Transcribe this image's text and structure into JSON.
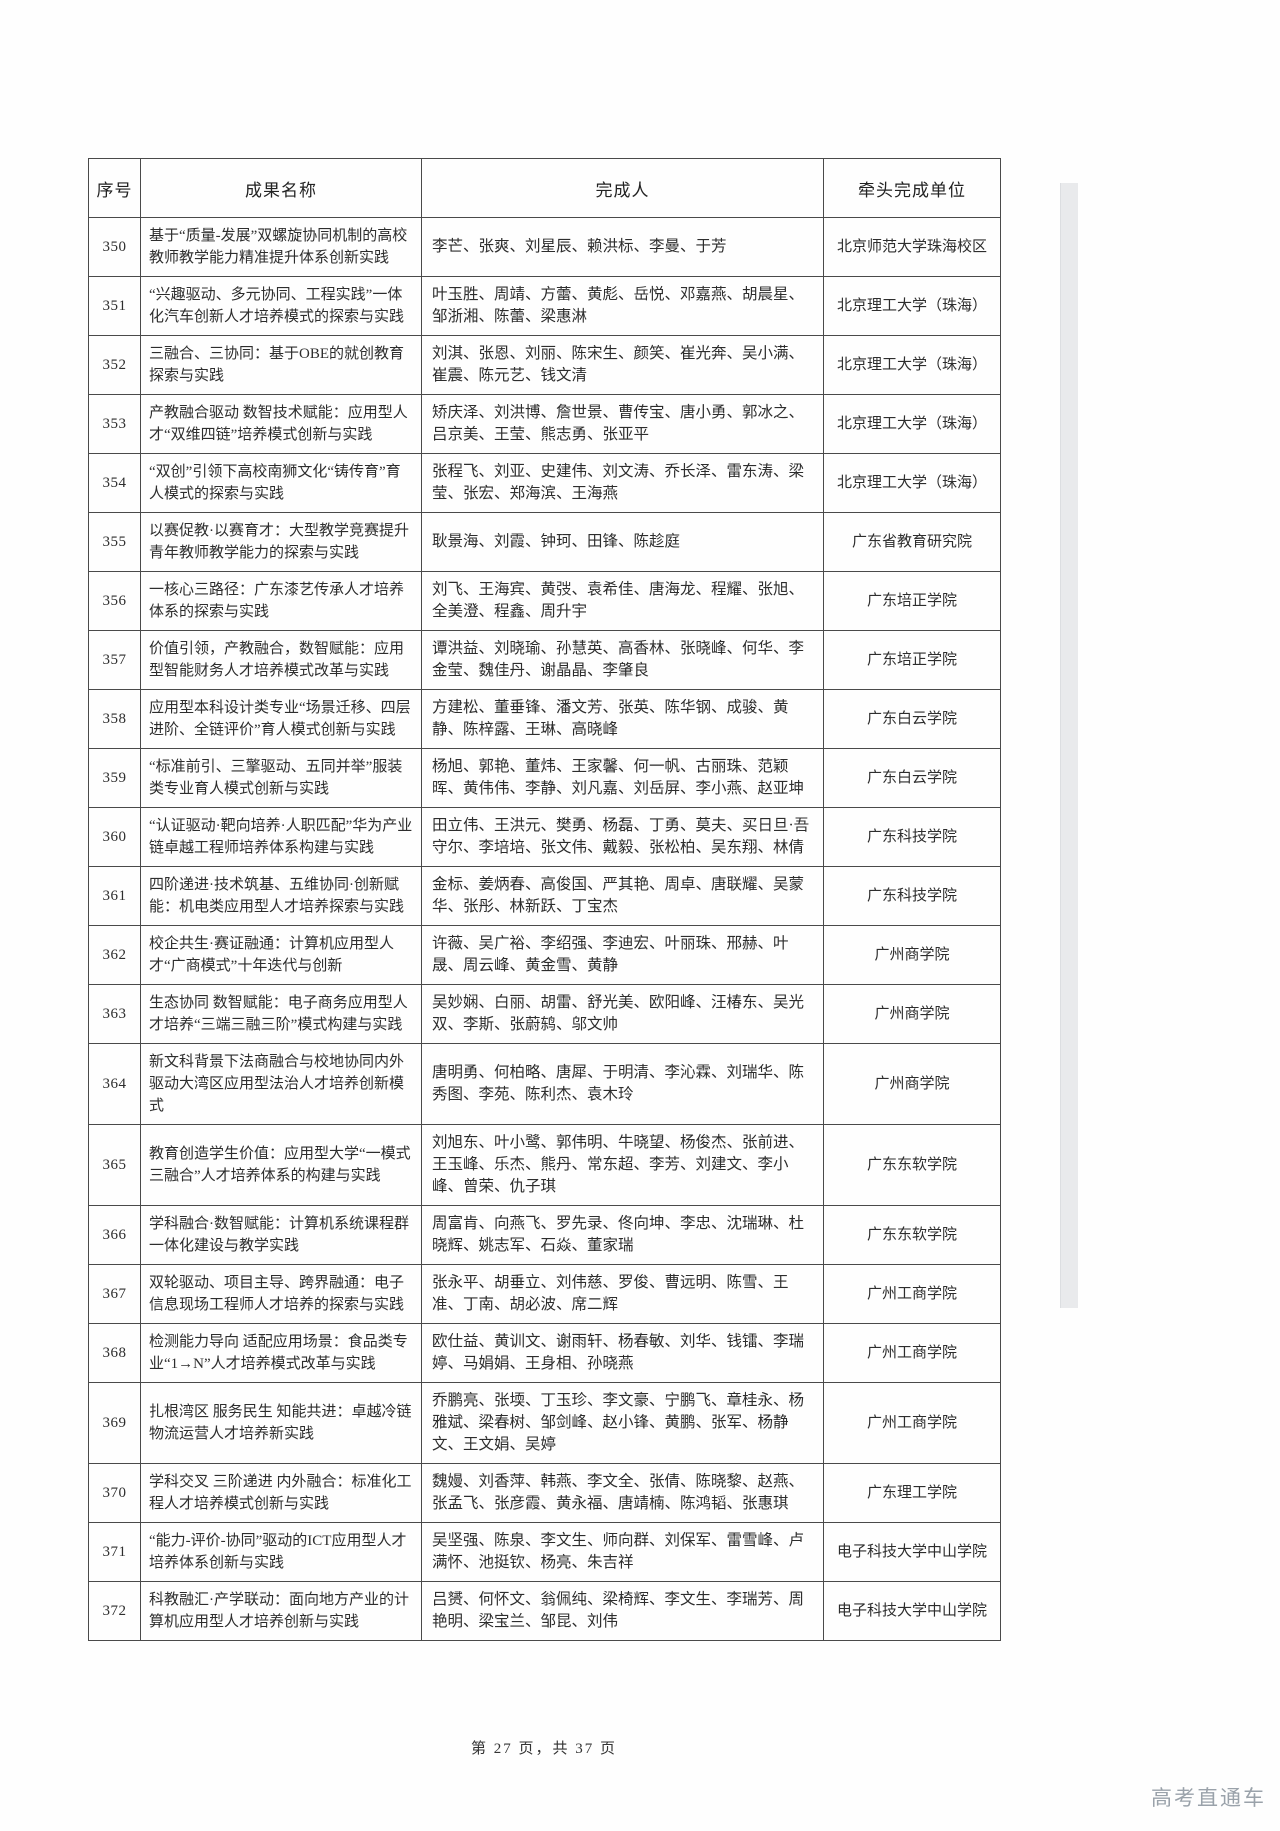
{
  "page": {
    "footer": "第 27 页，共 37 页",
    "watermark": "高考直通车"
  },
  "table": {
    "headers": [
      "序号",
      "成果名称",
      "完成人",
      "牵头完成单位"
    ],
    "rows": [
      {
        "no": "350",
        "title": "基于“质量-发展”双螺旋协同机制的高校教师教学能力精准提升体系创新实践",
        "people": "李芒、张爽、刘星辰、赖洪标、李曼、于芳",
        "unit": "北京师范大学珠海校区"
      },
      {
        "no": "351",
        "title": "“兴趣驱动、多元协同、工程实践”一体化汽车创新人才培养模式的探索与实践",
        "people": "叶玉胜、周靖、方蕾、黄彪、岳悦、邓嘉燕、胡晨星、邹浙湘、陈蕾、梁惠淋",
        "unit": "北京理工大学（珠海）"
      },
      {
        "no": "352",
        "title": "三融合、三协同：基于OBE的就创教育探索与实践",
        "people": "刘淇、张恩、刘丽、陈宋生、颜笑、崔光奔、吴小满、崔震、陈元艺、钱文清",
        "unit": "北京理工大学（珠海）"
      },
      {
        "no": "353",
        "title": "产教融合驱动 数智技术赋能：应用型人才“双维四链”培养模式创新与实践",
        "people": "矫庆泽、刘洪博、詹世景、曹传宝、唐小勇、郭冰之、吕京美、王莹、熊志勇、张亚平",
        "unit": "北京理工大学（珠海）"
      },
      {
        "no": "354",
        "title": "“双创”引领下高校南狮文化“铸传育”育人模式的探索与实践",
        "people": "张程飞、刘亚、史建伟、刘文涛、乔长泽、雷东涛、梁莹、张宏、郑海滨、王海燕",
        "unit": "北京理工大学（珠海）"
      },
      {
        "no": "355",
        "title": "以赛促教·以赛育才：大型教学竞赛提升青年教师教学能力的探索与实践",
        "people": "耿景海、刘霞、钟珂、田锋、陈趁庭",
        "unit": "广东省教育研究院"
      },
      {
        "no": "356",
        "title": "一核心三路径：广东漆艺传承人才培养体系的探索与实践",
        "people": "刘飞、王海宾、黄弢、袁希佳、唐海龙、程耀、张旭、全美澄、程鑫、周升宇",
        "unit": "广东培正学院"
      },
      {
        "no": "357",
        "title": "价值引领，产教融合，数智赋能：应用型智能财务人才培养模式改革与实践",
        "people": "谭洪益、刘晓瑜、孙慧英、高香林、张晓峰、何华、李金莹、魏佳丹、谢晶晶、李肇良",
        "unit": "广东培正学院"
      },
      {
        "no": "358",
        "title": "应用型本科设计类专业“场景迁移、四层进阶、全链评价”育人模式创新与实践",
        "people": "方建松、董垂锋、潘文芳、张英、陈华钢、成骏、黄静、陈梓露、王琳、高晓峰",
        "unit": "广东白云学院"
      },
      {
        "no": "359",
        "title": "“标准前引、三擎驱动、五同并举”服装类专业育人模式创新与实践",
        "people": "杨旭、郭艳、董炜、王家馨、何一帆、古丽珠、范颖晖、黄伟伟、李静、刘凡嘉、刘岳屏、李小燕、赵亚坤",
        "unit": "广东白云学院"
      },
      {
        "no": "360",
        "title": "“认证驱动·靶向培养·人职匹配”华为产业链卓越工程师培养体系构建与实践",
        "people": "田立伟、王洪元、樊勇、杨磊、丁勇、莫夫、买日旦·吾守尔、李培培、张文伟、戴毅、张松柏、吴东翔、林倩",
        "unit": "广东科技学院"
      },
      {
        "no": "361",
        "title": "四阶递进·技术筑基、五维协同·创新赋能：机电类应用型人才培养探索与实践",
        "people": "金标、姜炳春、高俊国、严其艳、周卓、唐联耀、吴蒙华、张彤、林新跃、丁宝杰",
        "unit": "广东科技学院"
      },
      {
        "no": "362",
        "title": "校企共生·赛证融通：计算机应用型人才“广商模式”十年迭代与创新",
        "people": "许薇、吴广裕、李绍强、李迪宏、叶丽珠、邢赫、叶晟、周云峰、黄金雪、黄静",
        "unit": "广州商学院"
      },
      {
        "no": "363",
        "title": "生态协同 数智赋能：电子商务应用型人才培养“三端三融三阶”模式构建与实践",
        "people": "吴妙娴、白丽、胡雷、舒光美、欧阳峰、汪椿东、吴光双、李斯、张蔚鸫、邬文帅",
        "unit": "广州商学院"
      },
      {
        "no": "364",
        "title": "新文科背景下法商融合与校地协同内外驱动大湾区应用型法治人才培养创新模式",
        "people": "唐明勇、何柏略、唐犀、于明清、李沁霖、刘瑞华、陈秀图、李苑、陈利杰、袁木玲",
        "unit": "广州商学院"
      },
      {
        "no": "365",
        "title": "教育创造学生价值：应用型大学“一模式三融合”人才培养体系的构建与实践",
        "people": "刘旭东、叶小鹭、郭伟明、牛晓望、杨俊杰、张前进、王玉峰、乐杰、熊丹、常东超、李芳、刘建文、李小峰、曾荣、仇子琪",
        "unit": "广东东软学院"
      },
      {
        "no": "366",
        "title": "学科融合·数智赋能：计算机系统课程群一体化建设与教学实践",
        "people": "周富肯、向燕飞、罗先录、佟向坤、李忠、沈瑞琳、杜晓辉、姚志军、石焱、董家瑞",
        "unit": "广东东软学院"
      },
      {
        "no": "367",
        "title": "双轮驱动、项目主导、跨界融通：电子信息现场工程师人才培养的探索与实践",
        "people": "张永平、胡垂立、刘伟慈、罗俊、曹远明、陈雪、王准、丁南、胡必波、席二辉",
        "unit": "广州工商学院"
      },
      {
        "no": "368",
        "title": "检测能力导向 适配应用场景：食品类专业“1→N”人才培养模式改革与实践",
        "people": "欧仕益、黄训文、谢雨轩、杨春敏、刘华、钱镭、李瑞婷、马娟娟、王身相、孙晓燕",
        "unit": "广州工商学院"
      },
      {
        "no": "369",
        "title": "扎根湾区 服务民生 知能共进：卓越冷链物流运营人才培养新实践",
        "people": "乔鹏亮、张堧、丁玉珍、李文豪、宁鹏飞、章桂永、杨雅斌、梁春树、邹剑峰、赵小锋、黄鹏、张军、杨静文、王文娟、吴婷",
        "unit": "广州工商学院"
      },
      {
        "no": "370",
        "title": "学科交叉 三阶递进 内外融合：标准化工程人才培养模式创新与实践",
        "people": "魏嫚、刘香萍、韩燕、李文全、张倩、陈晓黎、赵燕、张孟飞、张彦霞、黄永福、唐靖楠、陈鸿韬、张惠琪",
        "unit": "广东理工学院"
      },
      {
        "no": "371",
        "title": "“能力-评价-协同”驱动的ICT应用型人才培养体系创新与实践",
        "people": "吴坚强、陈泉、李文生、师向群、刘保军、雷雪峰、卢满怀、池挺钦、杨亮、朱吉祥",
        "unit": "电子科技大学中山学院"
      },
      {
        "no": "372",
        "title": "科教融汇·产学联动：面向地方产业的计算机应用型人才培养创新与实践",
        "people": "吕赟、何怀文、翁佩纯、梁椅辉、李文生、李瑞芳、周艳明、梁宝兰、邹昆、刘伟",
        "unit": "电子科技大学中山学院"
      }
    ]
  }
}
